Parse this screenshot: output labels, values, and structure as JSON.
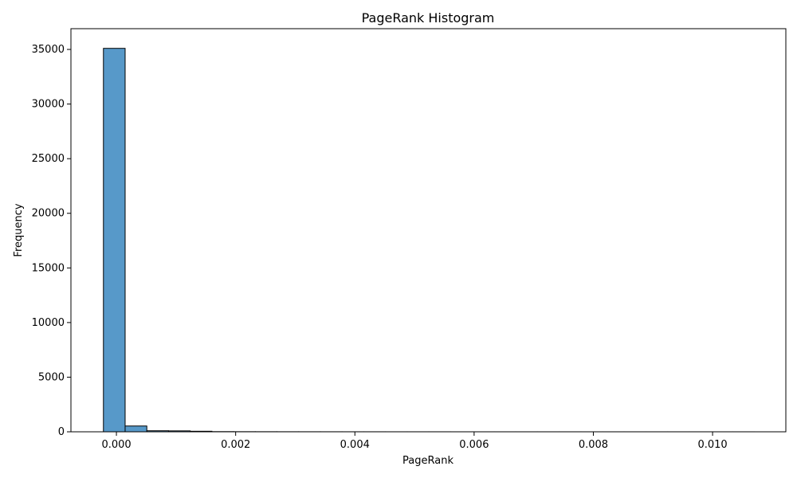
{
  "chart_data": {
    "type": "bar",
    "title": "PageRank Histogram",
    "xlabel": "PageRank",
    "ylabel": "Frequency",
    "xlim": [
      -0.000763,
      0.011229
    ],
    "ylim": [
      0,
      36900
    ],
    "xticks": [
      0.0,
      0.002,
      0.004,
      0.006,
      0.008,
      0.01
    ],
    "xtick_labels": [
      "0.000",
      "0.002",
      "0.004",
      "0.006",
      "0.008",
      "0.010"
    ],
    "yticks": [
      0,
      5000,
      10000,
      15000,
      20000,
      25000,
      30000,
      35000
    ],
    "ytick_labels": [
      "0",
      "5000",
      "10000",
      "15000",
      "20000",
      "25000",
      "30000",
      "35000"
    ],
    "bins": {
      "start": -0.000218,
      "width": 0.000364,
      "count": 30
    },
    "values": [
      35100,
      530,
      95,
      85,
      50,
      15,
      10,
      8,
      6,
      5,
      4,
      3,
      3,
      2,
      2,
      2,
      1,
      1,
      1,
      1,
      1,
      1,
      1,
      1,
      1,
      1,
      1,
      1,
      1,
      1
    ],
    "bar_color": "#5799c9",
    "edge_color": "#000000",
    "grid": false,
    "legend": "none"
  }
}
